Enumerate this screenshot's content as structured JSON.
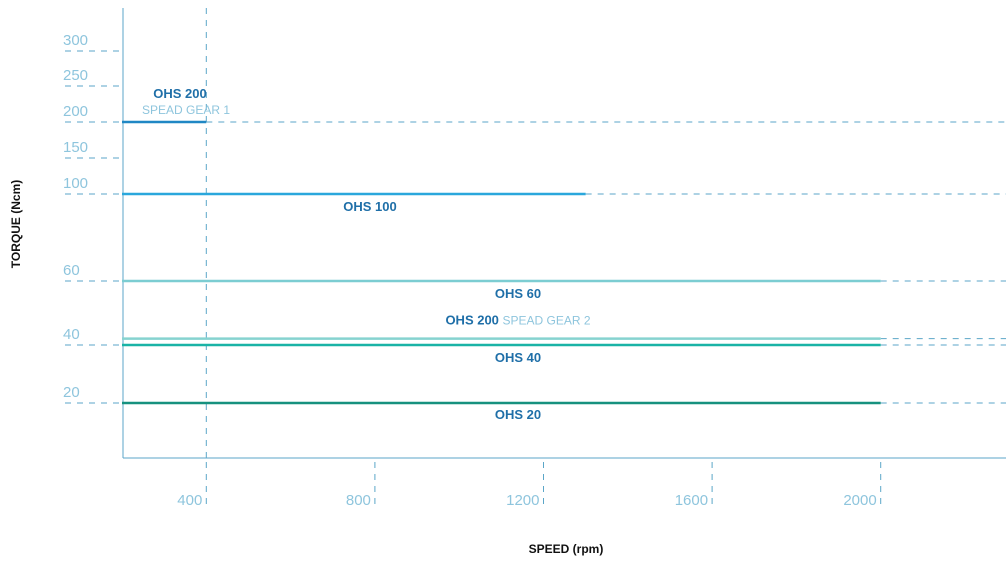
{
  "chart_data": {
    "type": "line",
    "xlabel": "SPEED (rpm)",
    "ylabel": "TORQUE (Ncm)",
    "x_ticks": [
      400,
      800,
      1200,
      1600,
      2000
    ],
    "y_ticks": [
      20,
      40,
      60,
      100,
      150,
      200,
      250,
      300
    ],
    "colors": {
      "axis": "#5ba6c8",
      "tick_label": "#8ec5dd",
      "subtitle": "#8ec5dd"
    },
    "series": [
      {
        "name": "OHS 200",
        "subtitle": "SPEAD GEAR 1",
        "y": 200,
        "x_end": 400,
        "color": "#1f87c4",
        "label_color": "#1f6fa8"
      },
      {
        "name": "OHS 100",
        "subtitle": "",
        "y": 100,
        "x_end": 1300,
        "color": "#2aa7dc",
        "label_color": "#1f6fa8"
      },
      {
        "name": "OHS 60",
        "subtitle": "",
        "y": 60,
        "x_end": 2000,
        "color": "#7ccdd2",
        "label_color": "#1f6fa8"
      },
      {
        "name": "OHS 200",
        "subtitle": "SPEAD GEAR 2",
        "y": 42,
        "x_end": 2000,
        "color": "#86d3d0",
        "label_color": "#1f6fa8"
      },
      {
        "name": "OHS 40",
        "subtitle": "",
        "y": 40,
        "x_end": 2000,
        "color": "#1ab3a6",
        "label_color": "#1f6fa8"
      },
      {
        "name": "OHS 20",
        "subtitle": "",
        "y": 20,
        "x_end": 2000,
        "color": "#16917f",
        "label_color": "#1f6fa8"
      }
    ]
  }
}
